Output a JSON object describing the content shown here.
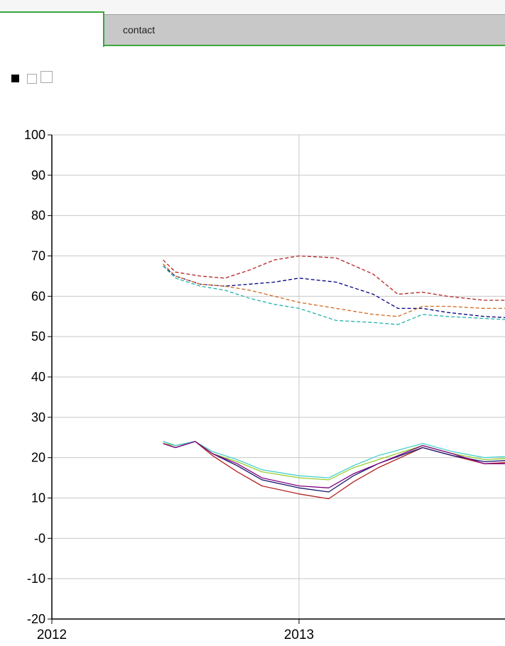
{
  "tabs": {
    "active_label": "",
    "contact_label": "contact"
  },
  "toggles": [
    {
      "name": "view-toggle-1",
      "state": "selected"
    },
    {
      "name": "view-toggle-2",
      "state": "unselected"
    },
    {
      "name": "view-toggle-3",
      "state": "unselected"
    }
  ],
  "colors": {
    "tab_border": "#3aa63a",
    "tab_bg": "#c8c8c8",
    "grid": "#c8c8c8"
  },
  "chart_data": {
    "type": "line",
    "title": "",
    "xlabel": "",
    "ylabel": "",
    "ylim": [
      -20,
      100
    ],
    "yticks": [
      100,
      90,
      80,
      70,
      60,
      50,
      40,
      30,
      20,
      10,
      0,
      -10,
      -20
    ],
    "ytick_labels": [
      "100",
      "90",
      "80",
      "70",
      "60",
      "50",
      "40",
      "30",
      "20",
      "10",
      "-0",
      "-10",
      "-20"
    ],
    "xticks": [
      2012,
      2013
    ],
    "xtick_labels": [
      "2012",
      "2013"
    ],
    "xlim": [
      2012,
      2013.9
    ],
    "grid": true,
    "series": [
      {
        "color": "#b22222",
        "dash": true,
        "points": [
          [
            2012.45,
            69
          ],
          [
            2012.5,
            66
          ],
          [
            2012.6,
            65
          ],
          [
            2012.7,
            64.5
          ],
          [
            2012.8,
            66.5
          ],
          [
            2012.9,
            69
          ],
          [
            2013,
            70
          ],
          [
            2013.15,
            69.5
          ],
          [
            2013.3,
            65.5
          ],
          [
            2013.4,
            60.5
          ],
          [
            2013.5,
            61
          ],
          [
            2013.6,
            60
          ],
          [
            2013.75,
            59
          ],
          [
            2013.9,
            59
          ]
        ]
      },
      {
        "color": "#000080",
        "dash": true,
        "points": [
          [
            2012.45,
            67.5
          ],
          [
            2012.5,
            65
          ],
          [
            2012.6,
            63
          ],
          [
            2012.7,
            62.5
          ],
          [
            2012.8,
            63
          ],
          [
            2012.9,
            63.5
          ],
          [
            2013,
            64.5
          ],
          [
            2013.15,
            63.5
          ],
          [
            2013.3,
            60.5
          ],
          [
            2013.4,
            57
          ],
          [
            2013.5,
            57
          ],
          [
            2013.6,
            56
          ],
          [
            2013.75,
            55
          ],
          [
            2013.9,
            54.5
          ]
        ]
      },
      {
        "color": "#d2691e",
        "dash": true,
        "points": [
          [
            2012.45,
            68
          ],
          [
            2012.5,
            65
          ],
          [
            2012.6,
            63
          ],
          [
            2012.7,
            62.5
          ],
          [
            2012.8,
            61.5
          ],
          [
            2012.9,
            60
          ],
          [
            2013,
            58.5
          ],
          [
            2013.15,
            57
          ],
          [
            2013.3,
            55.5
          ],
          [
            2013.4,
            55
          ],
          [
            2013.5,
            57.5
          ],
          [
            2013.6,
            57.5
          ],
          [
            2013.75,
            57
          ],
          [
            2013.9,
            57
          ]
        ]
      },
      {
        "color": "#20b2aa",
        "dash": true,
        "points": [
          [
            2012.45,
            67.5
          ],
          [
            2012.5,
            64.5
          ],
          [
            2012.6,
            62.5
          ],
          [
            2012.7,
            61.5
          ],
          [
            2012.8,
            59.5
          ],
          [
            2012.9,
            58
          ],
          [
            2013,
            57
          ],
          [
            2013.15,
            54
          ],
          [
            2013.3,
            53.5
          ],
          [
            2013.4,
            53
          ],
          [
            2013.5,
            55.5
          ],
          [
            2013.6,
            55
          ],
          [
            2013.75,
            54.5
          ],
          [
            2013.9,
            54
          ]
        ]
      },
      {
        "color": "#b22222",
        "dash": false,
        "points": [
          [
            2012.45,
            24
          ],
          [
            2012.5,
            23
          ],
          [
            2012.58,
            24
          ],
          [
            2012.65,
            20.5
          ],
          [
            2012.75,
            16.5
          ],
          [
            2012.85,
            13
          ],
          [
            2013,
            11
          ],
          [
            2013.12,
            9.8
          ],
          [
            2013.22,
            14
          ],
          [
            2013.32,
            17.5
          ],
          [
            2013.5,
            22.5
          ],
          [
            2013.62,
            20.5
          ],
          [
            2013.75,
            18.5
          ],
          [
            2013.9,
            19
          ]
        ]
      },
      {
        "color": "#191970",
        "dash": false,
        "points": [
          [
            2012.45,
            23.5
          ],
          [
            2012.5,
            22.5
          ],
          [
            2012.58,
            24
          ],
          [
            2012.65,
            21
          ],
          [
            2012.75,
            18
          ],
          [
            2012.85,
            14.5
          ],
          [
            2013,
            12.5
          ],
          [
            2013.12,
            11.5
          ],
          [
            2013.22,
            15.5
          ],
          [
            2013.32,
            18.5
          ],
          [
            2013.5,
            22.5
          ],
          [
            2013.62,
            20.5
          ],
          [
            2013.75,
            19
          ],
          [
            2013.9,
            19.5
          ]
        ]
      },
      {
        "color": "#9acd32",
        "dash": false,
        "points": [
          [
            2012.45,
            23.5
          ],
          [
            2012.5,
            23
          ],
          [
            2012.58,
            24
          ],
          [
            2012.65,
            21
          ],
          [
            2012.75,
            19
          ],
          [
            2012.85,
            16.5
          ],
          [
            2013,
            15
          ],
          [
            2013.12,
            14.5
          ],
          [
            2013.22,
            17.5
          ],
          [
            2013.32,
            19.5
          ],
          [
            2013.5,
            23
          ],
          [
            2013.62,
            21
          ],
          [
            2013.75,
            19.5
          ],
          [
            2013.9,
            20
          ]
        ]
      },
      {
        "color": "#48d1cc",
        "dash": false,
        "points": [
          [
            2012.45,
            24
          ],
          [
            2012.5,
            23
          ],
          [
            2012.58,
            24
          ],
          [
            2012.65,
            21.5
          ],
          [
            2012.75,
            19.5
          ],
          [
            2012.85,
            17
          ],
          [
            2013,
            15.5
          ],
          [
            2013.12,
            15
          ],
          [
            2013.22,
            18
          ],
          [
            2013.32,
            20.5
          ],
          [
            2013.5,
            23.5
          ],
          [
            2013.62,
            21.5
          ],
          [
            2013.75,
            20
          ],
          [
            2013.9,
            20.5
          ]
        ]
      },
      {
        "color": "#800080",
        "dash": false,
        "points": [
          [
            2012.45,
            23.5
          ],
          [
            2012.5,
            22.5
          ],
          [
            2012.58,
            24
          ],
          [
            2012.65,
            21
          ],
          [
            2012.75,
            18.5
          ],
          [
            2012.85,
            15
          ],
          [
            2013,
            13
          ],
          [
            2013.12,
            12.5
          ],
          [
            2013.22,
            16
          ],
          [
            2013.32,
            18.5
          ],
          [
            2013.5,
            23
          ],
          [
            2013.62,
            21
          ],
          [
            2013.75,
            18.5
          ],
          [
            2013.9,
            18.5
          ]
        ]
      }
    ]
  }
}
